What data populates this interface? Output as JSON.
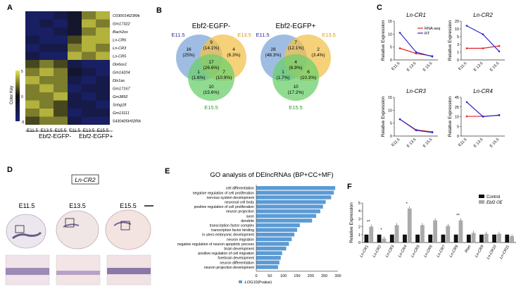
{
  "panel_labels": [
    "A",
    "B",
    "C",
    "D",
    "E",
    "F"
  ],
  "panel_a": {
    "genes": [
      "C030014I23Rik",
      "Gm17322",
      "Bach2os",
      "Ln-CR6",
      "Ln-CR3",
      "Ln-CR5",
      "Dlx6os1",
      "Gm14204",
      "Dlx1as",
      "Gm17167",
      "Gm3892",
      "Snhg18",
      "Gm13111",
      "5430405H02Rik"
    ],
    "stages": [
      "E11.5",
      "E13.5",
      "E15.5",
      "E11.5",
      "E13.5",
      "E15.5"
    ],
    "groups": [
      "Ebf2-EGFP-",
      "Ebf2-EGFP+"
    ],
    "color_key_label": "Color Key",
    "color_key_ticks": [
      "5",
      "0",
      "-5"
    ],
    "matrix": [
      [
        -3,
        -3,
        -2,
        -1,
        2,
        3
      ],
      [
        -3,
        -2,
        -3,
        -1,
        3,
        2
      ],
      [
        -3,
        -3,
        -2,
        -1,
        2,
        3
      ],
      [
        -2,
        -3,
        -3,
        1,
        3,
        3
      ],
      [
        -3,
        -2,
        -2,
        2,
        3,
        2
      ],
      [
        -2,
        -3,
        -3,
        3,
        2,
        3
      ],
      [
        1,
        2,
        1,
        -2,
        -3,
        -3
      ],
      [
        2,
        3,
        2,
        -1,
        -2,
        -3
      ],
      [
        3,
        2,
        2,
        -2,
        -3,
        -2
      ],
      [
        2,
        3,
        2,
        -3,
        -2,
        -2
      ],
      [
        2,
        2,
        3,
        -2,
        -3,
        -2
      ],
      [
        3,
        2,
        1,
        -2,
        -2,
        -3
      ],
      [
        2,
        3,
        1,
        -3,
        -2,
        -2
      ],
      [
        1,
        2,
        2,
        -2,
        -3,
        -3
      ]
    ],
    "colors": {
      "low": "#1a237e",
      "mid": "#111111",
      "high": "#e8e84a"
    }
  },
  "panel_b": {
    "venns": [
      {
        "title": "Ebf2-EGFP-",
        "a": "E11.5",
        "b": "E13.5",
        "c": "E15.5",
        "regions": {
          "a_only": "16\n(25%)",
          "ab": "9\n(14.1%)",
          "b_only": "4\n(6.3%)",
          "abc": "17\n(26.6%)",
          "ac": "1\n(1.6%)",
          "bc": "7\n(10.9%)",
          "c_only": "10\n(15.6%)"
        }
      },
      {
        "title": "Ebf2-EGFP+",
        "a": "E11.5",
        "b": "E13.5",
        "c": "E15.5",
        "regions": {
          "a_only": "28\n(48.3%)",
          "ab": "7\n(12.1%)",
          "b_only": "2\n(3.4%)",
          "abc": "4\n(6.9%)",
          "ac": "1\n(1.7%)",
          "bc": "6\n(10.3%)",
          "c_only": "10\n(17.2%)"
        }
      }
    ],
    "colors": {
      "a": "#7fa7d9",
      "b": "#f2c14e",
      "c": "#6ccf6c"
    }
  },
  "panel_c": {
    "ylabel": "Relative Expression",
    "legend": [
      "RNA-seq",
      "RT"
    ],
    "x": [
      "E11.5",
      "E 13.5",
      "E 15.5"
    ],
    "charts": [
      {
        "title": "Ln-CR1",
        "yticks": [
          "0",
          "5",
          "10",
          "15"
        ],
        "ylim": [
          0,
          15
        ],
        "rnaseq": [
          4.5,
          2.5,
          1.5
        ],
        "rt": [
          10.5,
          3.0,
          1.3
        ]
      },
      {
        "title": "Ln-CR2",
        "yticks": [
          "0",
          "1",
          "3",
          "5",
          "10",
          "20"
        ],
        "ylim": [
          0,
          20
        ],
        "rnaseq": [
          2,
          2,
          2.6
        ],
        "rt": [
          14,
          6.5,
          1.2
        ]
      },
      {
        "title": "Ln-CR3",
        "yticks": [
          "0",
          "5",
          "10",
          "15"
        ],
        "ylim": [
          0,
          15
        ],
        "rnaseq": [
          6.5,
          2.4,
          1.6
        ],
        "rt": [
          6.5,
          2.2,
          1.4
        ]
      },
      {
        "title": "Ln-CR4",
        "yticks": [
          "0",
          "5",
          "10",
          "25",
          "45"
        ],
        "ylim": [
          0,
          45
        ],
        "rnaseq": [
          10.5,
          10.5,
          12
        ],
        "rt": [
          35,
          10,
          12.5
        ]
      }
    ],
    "colors": {
      "rnaseq": "#e02020",
      "rt": "#2a2acc"
    }
  },
  "panel_d": {
    "title": "Ln-CR2",
    "stages": [
      "E11.5",
      "E13.5",
      "E15.5"
    ]
  },
  "panel_e": {
    "title": "GO analysis of DElncRNAs (BP+CC+MF)",
    "legend": "-LOG10(Pvalue)",
    "xticks": [
      "0",
      "50",
      "100",
      "150",
      "200",
      "250",
      "300"
    ],
    "chart_data": {
      "type": "bar",
      "orientation": "horizontal",
      "categories": [
        "cell differentiation",
        "negative  regulation of cell proliferation",
        "nervous system development",
        "neuronal cell body",
        "positive regulation of cell proliferation",
        "neuron projection",
        "axon",
        "dendrite",
        "transcription factor complex",
        "transcription factor binding",
        "in utero embryonic development",
        "neuron migration",
        "negative regulation of neuron apoptotic process",
        "brain development",
        "positive regulation of cell migration",
        "forebrain development",
        "neuron differentiation",
        "neuron projection development"
      ],
      "values": [
        290,
        285,
        275,
        255,
        245,
        235,
        220,
        205,
        160,
        150,
        140,
        130,
        120,
        110,
        95,
        90,
        85,
        80
      ],
      "xlim": [
        0,
        300
      ]
    },
    "color": "#5b9bd5"
  },
  "panel_f": {
    "ylabel": "Relative Expression",
    "legend": [
      "Control",
      "Ebf2 OE"
    ],
    "yticks": [
      "0",
      "1",
      "2",
      "3",
      "4",
      "5"
    ],
    "chart_data": {
      "type": "bar",
      "categories": [
        "Ln-CR1",
        "Ln-CR2",
        "Ln-CR3",
        "Ln-CR4",
        "Ln-CR5",
        "Ln-CR6",
        "Ln-CR7",
        "Ln-CR8",
        "Rian",
        "Ln-CR9",
        "Ln-CR10",
        "Ln-CR11"
      ],
      "series": [
        {
          "name": "Control",
          "values": [
            1,
            1,
            1,
            1,
            1,
            1,
            1,
            1,
            1,
            1,
            1,
            1
          ]
        },
        {
          "name": "Ebf2 OE",
          "values": [
            2.0,
            0.5,
            2.2,
            4.3,
            2.2,
            2.8,
            2.1,
            2.8,
            1.2,
            1.1,
            1.1,
            0.8
          ]
        }
      ],
      "ylim": [
        0,
        5
      ]
    },
    "sig": [
      "**",
      "*",
      "",
      "*",
      "",
      "",
      "",
      "**",
      "",
      "",
      "",
      ""
    ],
    "colors": {
      "control": "#111111",
      "oe": "#aaaaaa"
    }
  }
}
